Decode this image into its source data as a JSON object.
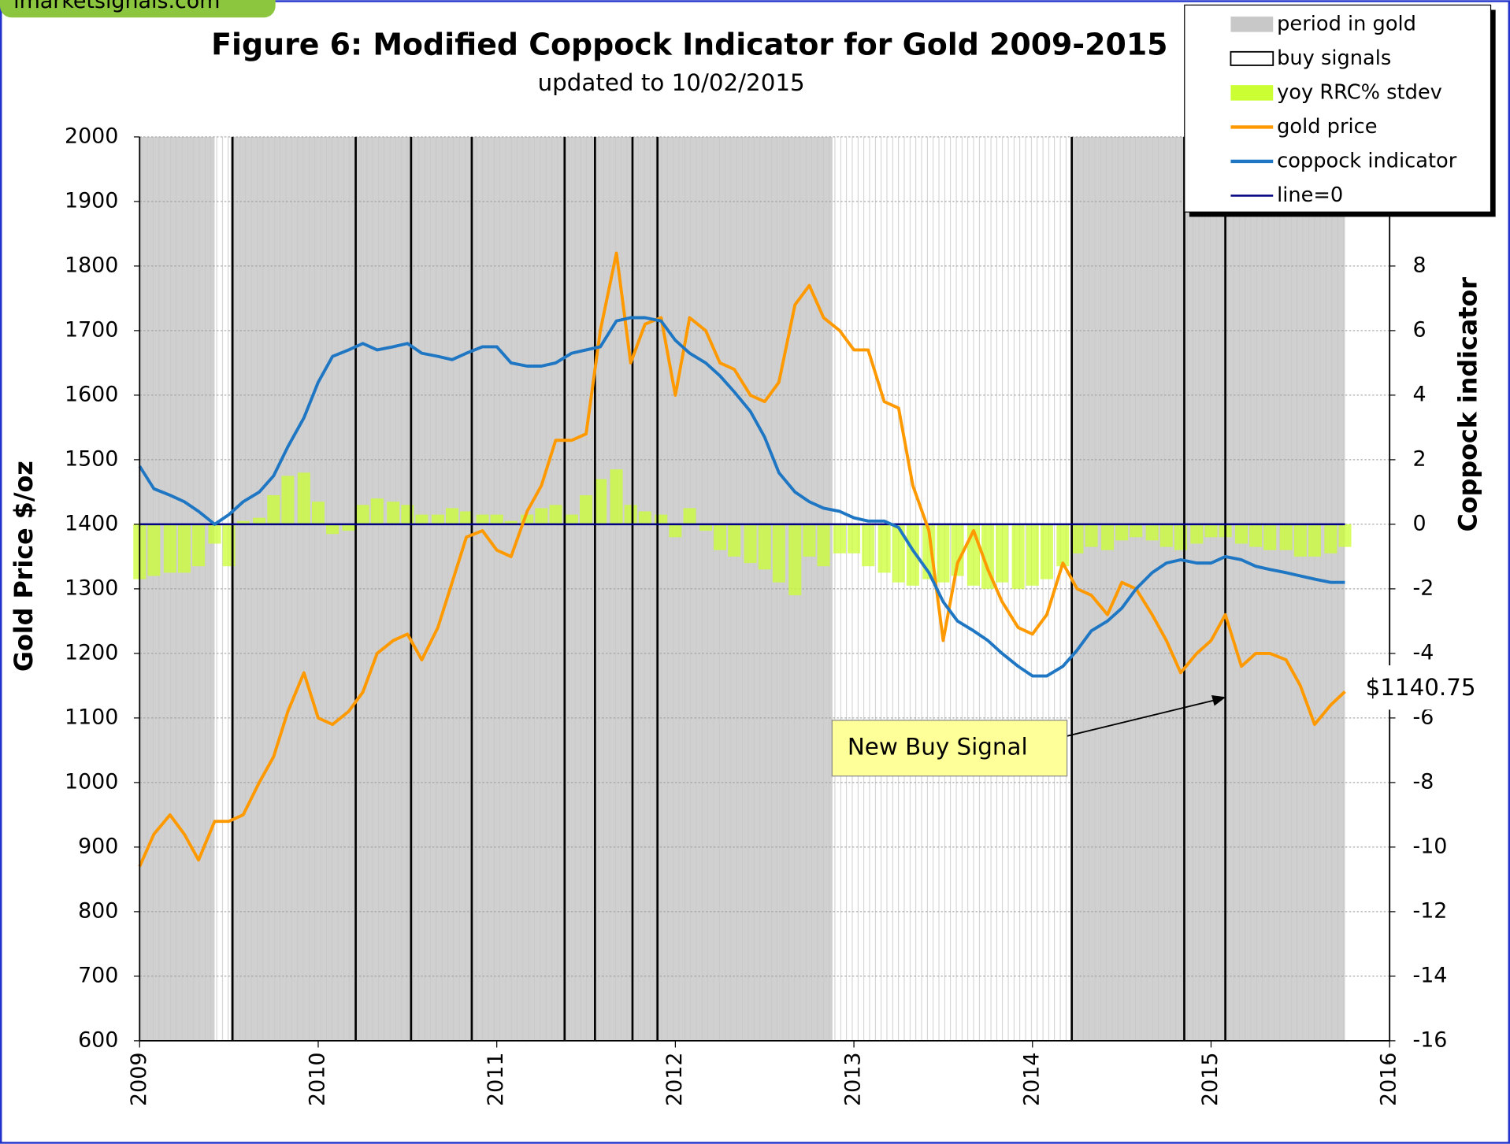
{
  "chart_data": {
    "type": "line",
    "logo": "imarketsignals.com",
    "title": "Figure 6:  Modified Coppock Indicator for Gold  2009-2015",
    "subtitle": "updated to  10/02/2015",
    "y_label": "Gold Price  $/oz",
    "y2_label": "Coppock indicator",
    "xlim": [
      2009,
      2016
    ],
    "xticks": [
      2009,
      2010,
      2011,
      2012,
      2013,
      2014,
      2015,
      2016
    ],
    "ylim": [
      600,
      2000
    ],
    "yticks": [
      600,
      700,
      800,
      900,
      1000,
      1100,
      1200,
      1300,
      1400,
      1500,
      1600,
      1700,
      1800,
      1900,
      2000
    ],
    "y2lim": [
      -16,
      12
    ],
    "y2ticks": [
      -16,
      -14,
      -12,
      -10,
      -8,
      -6,
      -4,
      -2,
      0,
      2,
      4,
      6,
      8
    ],
    "grid": true,
    "legend": "top-right",
    "x": [
      2009,
      2009.08,
      2009.17,
      2009.25,
      2009.33,
      2009.42,
      2009.5,
      2009.58,
      2009.67,
      2009.75,
      2009.83,
      2009.92,
      2010,
      2010.08,
      2010.17,
      2010.25,
      2010.33,
      2010.42,
      2010.5,
      2010.58,
      2010.67,
      2010.75,
      2010.83,
      2010.92,
      2011,
      2011.08,
      2011.17,
      2011.25,
      2011.33,
      2011.42,
      2011.5,
      2011.58,
      2011.67,
      2011.75,
      2011.83,
      2011.92,
      2012,
      2012.08,
      2012.17,
      2012.25,
      2012.33,
      2012.42,
      2012.5,
      2012.58,
      2012.67,
      2012.75,
      2012.83,
      2012.92,
      2013,
      2013.08,
      2013.17,
      2013.25,
      2013.33,
      2013.42,
      2013.5,
      2013.58,
      2013.67,
      2013.75,
      2013.83,
      2013.92,
      2014,
      2014.08,
      2014.17,
      2014.25,
      2014.33,
      2014.42,
      2014.5,
      2014.58,
      2014.67,
      2014.75,
      2014.83,
      2014.92,
      2015,
      2015.08,
      2015.17,
      2015.25,
      2015.33,
      2015.42,
      2015.5,
      2015.58,
      2015.67,
      2015.75
    ],
    "series": [
      {
        "name": "period in gold",
        "kind": "band",
        "color": "#c8c8c8",
        "ranges": [
          [
            2009,
            2009.42
          ],
          [
            2009.51,
            2012.88
          ],
          [
            2014.22,
            2015.75
          ]
        ]
      },
      {
        "name": "buy signals",
        "kind": "vline",
        "color": "#000000",
        "x": [
          2009.52,
          2010.21,
          2010.52,
          2010.86,
          2011.38,
          2011.55,
          2011.76,
          2011.9,
          2014.22,
          2014.85,
          2015.08
        ]
      },
      {
        "name": "yoy RRC% stdev",
        "kind": "bar",
        "color": "#ccff33",
        "axis": "y2",
        "values": [
          -1.7,
          -1.6,
          -1.5,
          -1.5,
          -1.3,
          -0.6,
          -1.3,
          0.1,
          0.2,
          0.9,
          1.5,
          1.6,
          0.7,
          -0.3,
          -0.2,
          0.6,
          0.8,
          0.7,
          0.6,
          0.3,
          0.3,
          0.5,
          0.4,
          0.3,
          0.3,
          0.1,
          0.3,
          0.5,
          0.6,
          0.3,
          0.9,
          1.4,
          1.7,
          0.6,
          0.4,
          0.3,
          -0.4,
          0.5,
          -0.2,
          -0.8,
          -1,
          -1.2,
          -1.4,
          -1.8,
          -2.2,
          -1,
          -1.3,
          -0.9,
          -0.9,
          -1.3,
          -1.5,
          -1.8,
          -1.9,
          -1.7,
          -1.8,
          -1.6,
          -1.9,
          -2,
          -1.8,
          -2,
          -1.9,
          -1.7,
          -1.3,
          -0.9,
          -0.7,
          -0.8,
          -0.5,
          -0.4,
          -0.5,
          -0.7,
          -0.8,
          -0.6,
          -0.4,
          -0.4,
          -0.6,
          -0.7,
          -0.8,
          -0.8,
          -1,
          -1,
          -0.9,
          -0.7
        ]
      },
      {
        "name": "gold price",
        "kind": "line",
        "color": "#ff9900",
        "values": [
          870,
          920,
          950,
          920,
          880,
          940,
          940,
          950,
          1000,
          1040,
          1110,
          1170,
          1100,
          1090,
          1110,
          1140,
          1200,
          1220,
          1230,
          1190,
          1240,
          1310,
          1380,
          1390,
          1360,
          1350,
          1420,
          1460,
          1530,
          1530,
          1540,
          1700,
          1820,
          1650,
          1710,
          1720,
          1600,
          1720,
          1700,
          1650,
          1640,
          1600,
          1590,
          1620,
          1740,
          1770,
          1720,
          1700,
          1670,
          1670,
          1590,
          1580,
          1460,
          1390,
          1220,
          1340,
          1390,
          1330,
          1280,
          1240,
          1230,
          1260,
          1340,
          1300,
          1290,
          1260,
          1310,
          1300,
          1260,
          1220,
          1170,
          1200,
          1220,
          1260,
          1180,
          1200,
          1200,
          1190,
          1150,
          1090,
          1120,
          1140.75
        ]
      },
      {
        "name": "coppock indicator",
        "kind": "line",
        "color": "#1f77c4",
        "axis": "y2",
        "values": [
          1.8,
          1.1,
          0.9,
          0.7,
          0.4,
          0,
          0.3,
          0.7,
          1,
          1.5,
          2.4,
          3.3,
          4.4,
          5.2,
          5.4,
          5.6,
          5.4,
          5.5,
          5.6,
          5.3,
          5.2,
          5.1,
          5.3,
          5.5,
          5.5,
          5,
          4.9,
          4.9,
          5,
          5.3,
          5.4,
          5.5,
          6.3,
          6.4,
          6.4,
          6.3,
          5.7,
          5.3,
          5,
          4.6,
          4.1,
          3.5,
          2.7,
          1.6,
          1,
          0.7,
          0.5,
          0.4,
          0.2,
          0.1,
          0.1,
          -0.1,
          -0.8,
          -1.5,
          -2.4,
          -3,
          -3.3,
          -3.6,
          -4,
          -4.4,
          -4.7,
          -4.7,
          -4.4,
          -3.9,
          -3.3,
          -3,
          -2.6,
          -2,
          -1.5,
          -1.2,
          -1.1,
          -1.2,
          -1.2,
          -1,
          -1.1,
          -1.3,
          -1.4,
          -1.5,
          -1.6,
          -1.7,
          -1.8,
          -1.8
        ]
      },
      {
        "name": "line=0",
        "kind": "hline",
        "color": "#000080",
        "axis": "y2",
        "value": 0
      }
    ],
    "annotations": [
      {
        "text": "New Buy Signal"
      },
      {
        "text": "$1140.75"
      }
    ]
  }
}
